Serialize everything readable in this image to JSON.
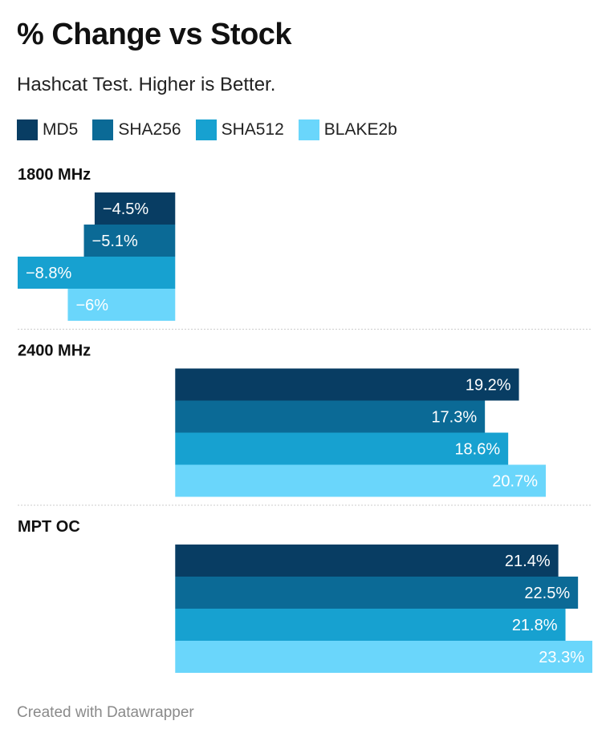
{
  "colors": {
    "MD5": "#083d63",
    "SHA256": "#0b6a96",
    "SHA512": "#17a1d0",
    "BLAKE2b": "#6ad6fb"
  },
  "chart_data": {
    "type": "bar",
    "orientation": "horizontal",
    "title": "% Change vs Stock",
    "subtitle": "Hashcat Test. Higher is Better.",
    "legend": [
      "MD5",
      "SHA256",
      "SHA512",
      "BLAKE2b"
    ],
    "legend_position": "top-left",
    "groups": [
      {
        "name": "1800 MHz",
        "values": [
          -4.5,
          -5.1,
          -8.8,
          -6
        ],
        "labels": [
          "−4.5%",
          "−5.1%",
          "−8.8%",
          "−6%"
        ]
      },
      {
        "name": "2400 MHz",
        "values": [
          19.2,
          17.3,
          18.6,
          20.7
        ],
        "labels": [
          "19.2%",
          "17.3%",
          "18.6%",
          "20.7%"
        ]
      },
      {
        "name": "MPT OC",
        "values": [
          21.4,
          22.5,
          21.8,
          23.3
        ],
        "labels": [
          "21.4%",
          "22.5%",
          "21.8%",
          "23.3%"
        ]
      }
    ],
    "xlim": [
      -8.8,
      23.3
    ],
    "grid": false
  },
  "footer": "Created with Datawrapper"
}
